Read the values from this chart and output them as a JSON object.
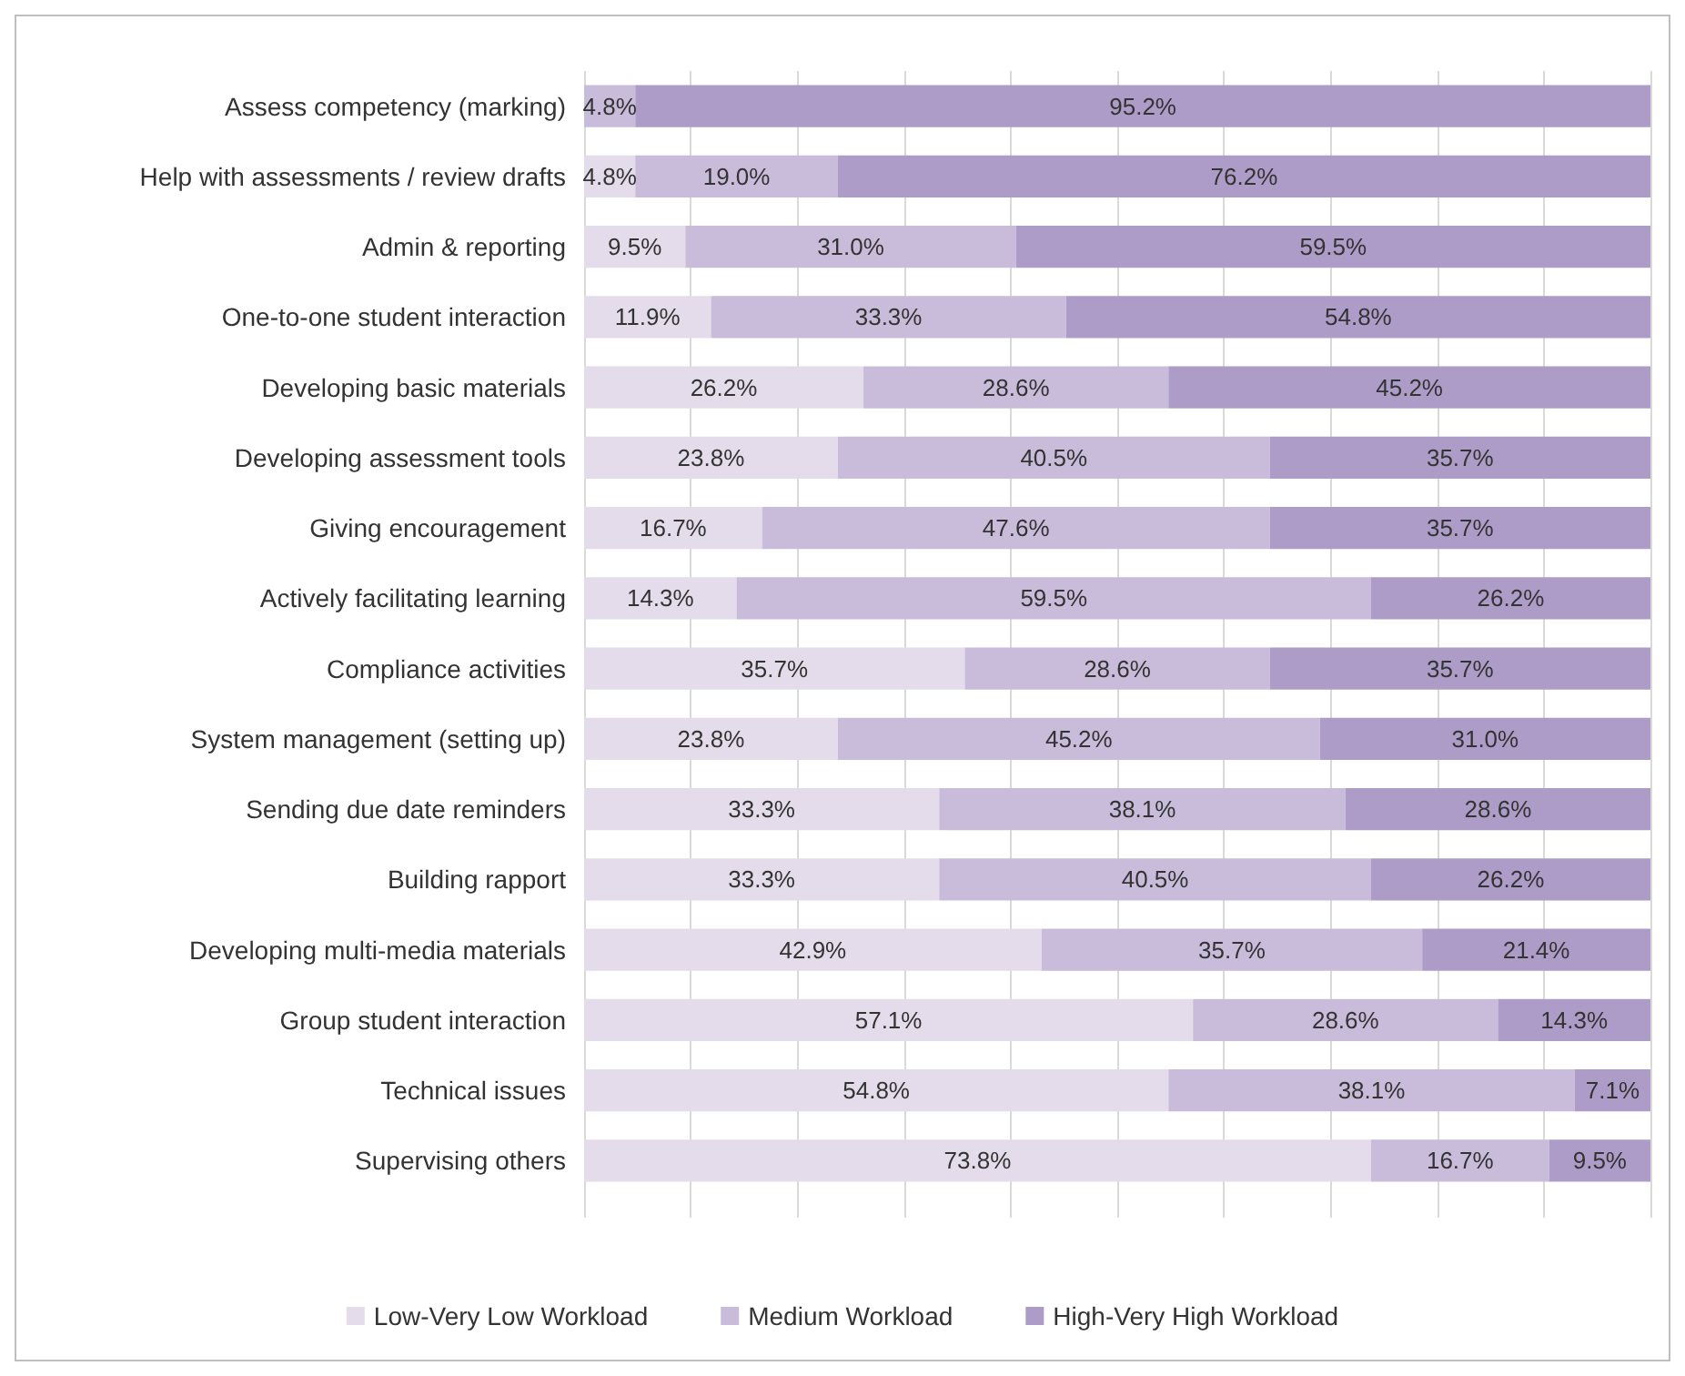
{
  "chart_data": {
    "type": "bar",
    "orientation": "horizontal",
    "stacked": true,
    "categories": [
      "Assess competency (marking)",
      "Help with assessments / review drafts",
      "Admin & reporting",
      "One-to-one student interaction",
      "Developing basic materials",
      "Developing assessment tools",
      "Giving encouragement",
      "Actively facilitating learning",
      "Compliance activities",
      "System management (setting up)",
      "Sending due date reminders",
      "Building rapport",
      "Developing multi-media materials",
      "Group student interaction",
      "Technical issues",
      "Supervising others"
    ],
    "series": [
      {
        "name": "Low-Very Low Workload",
        "color": "#e4dcea",
        "values": [
          null,
          4.8,
          9.5,
          11.9,
          26.2,
          23.8,
          16.7,
          14.3,
          35.7,
          23.8,
          33.3,
          33.3,
          42.9,
          57.1,
          54.8,
          73.8
        ],
        "value_labels": [
          null,
          "4.8%",
          "9.5%",
          "11.9%",
          "26.2%",
          "23.8%",
          "16.7%",
          "14.3%",
          "35.7%",
          "23.8%",
          "33.3%",
          "33.3%",
          "42.9%",
          "57.1%",
          "54.8%",
          "73.8%"
        ]
      },
      {
        "name": "Medium Workload",
        "color": "#c9bcdb",
        "values": [
          4.8,
          19.0,
          31.0,
          33.3,
          28.6,
          40.5,
          47.6,
          59.5,
          28.6,
          45.2,
          38.1,
          40.5,
          35.7,
          28.6,
          38.1,
          16.7
        ],
        "value_labels": [
          "4.8%",
          "19.0%",
          "31.0%",
          "33.3%",
          "28.6%",
          "40.5%",
          "47.6%",
          "59.5%",
          "28.6%",
          "45.2%",
          "38.1%",
          "40.5%",
          "35.7%",
          "28.6%",
          "38.1%",
          "16.7%"
        ]
      },
      {
        "name": "High-Very High Workload",
        "color": "#ae9cc8",
        "values": [
          95.2,
          76.2,
          59.5,
          54.8,
          45.2,
          35.7,
          35.7,
          26.2,
          35.7,
          31.0,
          28.6,
          26.2,
          21.4,
          14.3,
          7.1,
          9.5
        ],
        "value_labels": [
          "95.2%",
          "76.2%",
          "59.5%",
          "54.8%",
          "45.2%",
          "35.7%",
          "35.7%",
          "26.2%",
          "35.7%",
          "31.0%",
          "28.6%",
          "26.2%",
          "21.4%",
          "14.3%",
          "7.1%",
          "9.5%"
        ]
      }
    ],
    "xlim": [
      0,
      100
    ],
    "xticks": [
      {
        "value": 0,
        "label": null
      },
      {
        "value": 10,
        "label": null
      },
      {
        "value": 20,
        "label": null
      },
      {
        "value": 30,
        "label": null
      },
      {
        "value": 40,
        "label": null
      },
      {
        "value": 50,
        "label": null
      },
      {
        "value": 60,
        "label": null
      },
      {
        "value": 70,
        "label": null
      },
      {
        "value": 80,
        "label": null
      },
      {
        "value": 90,
        "label": null
      },
      {
        "value": 100,
        "label": null
      }
    ],
    "tick_labels": "y",
    "grid": "x",
    "legend": "bottom"
  }
}
